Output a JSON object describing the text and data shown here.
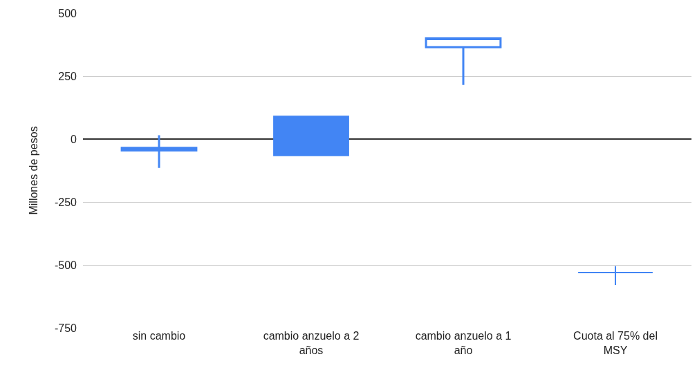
{
  "chart_data": {
    "type": "candlestick",
    "ylabel": "Millones de pesos",
    "categories": [
      "sin cambio",
      "cambio anzuelo a 2 años",
      "cambio anzuelo a 1 año",
      "Cuota al 75% del MSY"
    ],
    "series": [
      {
        "color": "#4285f4",
        "ohlc": [
          [
            -45,
            15,
            -115,
            -35
          ],
          [
            90,
            90,
            -65,
            -65
          ],
          [
            365,
            400,
            215,
            400
          ],
          [
            -530,
            -505,
            -580,
            -530
          ]
        ]
      }
    ],
    "ylim": [
      -750,
      500
    ],
    "yticks": [
      -750,
      -500,
      -250,
      0,
      250,
      500
    ],
    "grid": "y"
  }
}
